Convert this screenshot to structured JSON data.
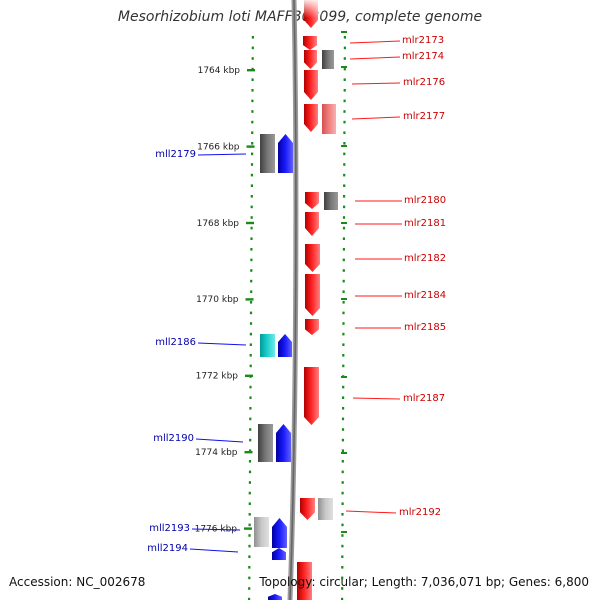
{
  "title": "Mesorhizobium loti MAFF303099, complete genome",
  "accession_text": "Accession: NC_002678",
  "topology_text": "Topology: circular; Length: 7,036,071 bp; Genes: 6,800",
  "colors": {
    "forward": "#ff1a1a",
    "reverse": "#1010ee",
    "forward_label": "#cc0000",
    "reverse_label": "#0000aa",
    "ruler": "#1a8a1a",
    "backbone": "#888888",
    "tick_label": "#222222"
  },
  "ruler_ticks": [
    {
      "label": "1764 kbp",
      "kbp": 1764
    },
    {
      "label": "1766 kbp",
      "kbp": 1766
    },
    {
      "label": "1768 kbp",
      "kbp": 1768
    },
    {
      "label": "1770 kbp",
      "kbp": 1770
    },
    {
      "label": "1772 kbp",
      "kbp": 1772
    },
    {
      "label": "1774 kbp",
      "kbp": 1774
    },
    {
      "label": "1776 kbp",
      "kbp": 1776
    }
  ],
  "labeled_genes": [
    {
      "name": "mlr2173",
      "strand": "forward"
    },
    {
      "name": "mlr2174",
      "strand": "forward"
    },
    {
      "name": "mlr2176",
      "strand": "forward"
    },
    {
      "name": "mlr2177",
      "strand": "forward"
    },
    {
      "name": "mll2179",
      "strand": "reverse"
    },
    {
      "name": "mlr2180",
      "strand": "forward"
    },
    {
      "name": "mlr2181",
      "strand": "forward"
    },
    {
      "name": "mlr2182",
      "strand": "forward"
    },
    {
      "name": "mlr2184",
      "strand": "forward"
    },
    {
      "name": "mlr2185",
      "strand": "forward"
    },
    {
      "name": "mll2186",
      "strand": "reverse"
    },
    {
      "name": "mlr2187",
      "strand": "forward"
    },
    {
      "name": "mll2190",
      "strand": "reverse"
    },
    {
      "name": "mlr2192",
      "strand": "forward"
    },
    {
      "name": "mll2193",
      "strand": "reverse"
    },
    {
      "name": "mll2194",
      "strand": "reverse"
    }
  ]
}
